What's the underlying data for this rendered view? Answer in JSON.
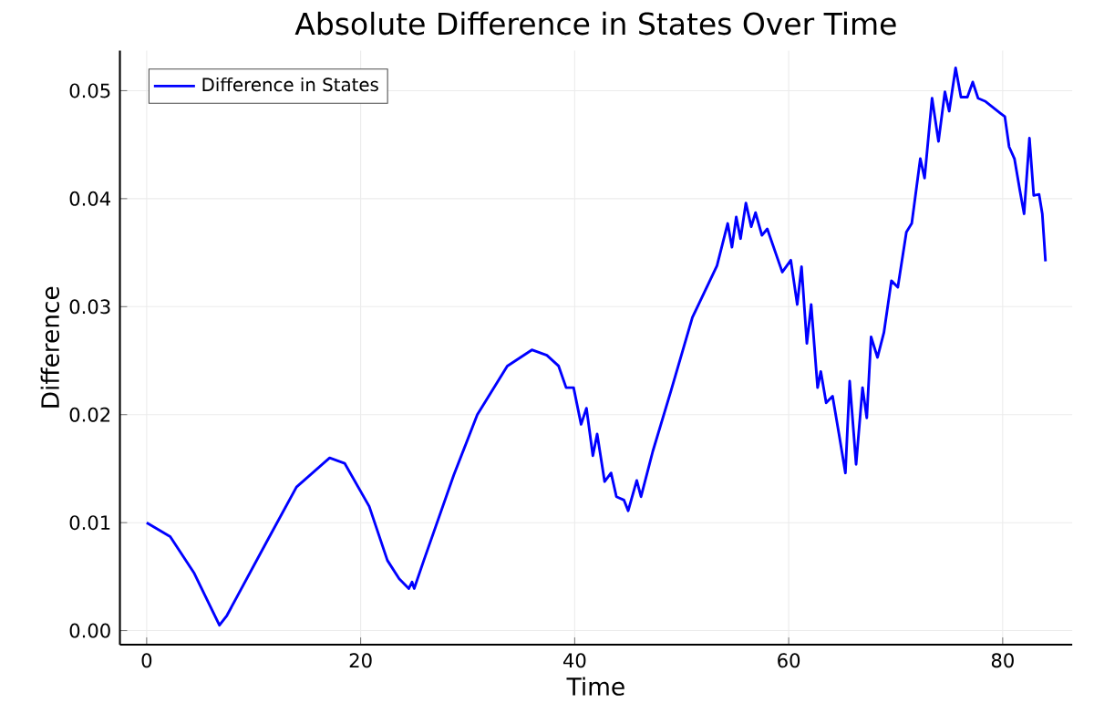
{
  "chart_data": {
    "type": "line",
    "title": "Absolute Difference in States Over Time",
    "xlabel": "Time",
    "ylabel": "Difference",
    "xlim": [
      -2.5,
      86.5
    ],
    "ylim": [
      -0.0013,
      0.0537
    ],
    "xticks": [
      0,
      20,
      40,
      60,
      80
    ],
    "yticks": [
      {
        "value": 0,
        "label": "0.00"
      },
      {
        "value": 0.01,
        "label": "0.01"
      },
      {
        "value": 0.02,
        "label": "0.02"
      },
      {
        "value": 0.03,
        "label": "0.03"
      },
      {
        "value": 0.04,
        "label": "0.04"
      },
      {
        "value": 0.05,
        "label": "0.05"
      }
    ],
    "grid": true,
    "legend": "top left",
    "line_style": "solid",
    "marker": "none",
    "x": [
      0,
      2.2,
      4.45,
      6.8,
      7.5,
      11.2,
      14.0,
      17.1,
      18.5,
      20.8,
      22.5,
      23.6,
      24.5,
      24.8,
      25.0,
      25.9,
      28.7,
      30.9,
      33.7,
      36.0,
      37.4,
      38.5,
      39.2,
      39.9,
      40.6,
      41.1,
      41.7,
      42.1,
      42.8,
      43.4,
      43.9,
      44.6,
      45.0,
      45.8,
      46.2,
      47.3,
      49.0,
      51.0,
      53.3,
      54.3,
      54.7,
      55.1,
      55.5,
      56.0,
      56.5,
      56.9,
      57.5,
      58.0,
      59.4,
      60.2,
      60.8,
      61.2,
      61.7,
      62.1,
      62.7,
      63.0,
      63.5,
      64.1,
      64.7,
      65.3,
      65.7,
      66.3,
      66.9,
      67.3,
      67.7,
      68.3,
      68.9,
      69.6,
      70.2,
      71.0,
      71.5,
      72.3,
      72.7,
      73.4,
      74.0,
      74.6,
      75.0,
      75.6,
      76.1,
      76.7,
      77.2,
      77.7,
      78.4,
      79.8,
      80.2,
      80.6,
      81.1,
      81.6,
      82.0,
      82.5,
      82.9,
      83.4,
      83.7,
      84.0
    ],
    "series": [
      {
        "name": "Difference in States",
        "color": "#0000ff",
        "values": [
          0.01,
          0.0087,
          0.0053,
          0.0005,
          0.0014,
          0.0082,
          0.0133,
          0.016,
          0.0155,
          0.0115,
          0.0065,
          0.0048,
          0.0039,
          0.0045,
          0.0039,
          0.0065,
          0.0144,
          0.02,
          0.0245,
          0.026,
          0.0255,
          0.0245,
          0.0225,
          0.0225,
          0.0191,
          0.0206,
          0.0162,
          0.0182,
          0.0138,
          0.0146,
          0.0124,
          0.0121,
          0.0111,
          0.0139,
          0.0124,
          0.0166,
          0.0222,
          0.029,
          0.0338,
          0.0377,
          0.0355,
          0.0383,
          0.0363,
          0.0396,
          0.0374,
          0.0387,
          0.0366,
          0.0372,
          0.0332,
          0.0343,
          0.0302,
          0.0337,
          0.0266,
          0.0302,
          0.0225,
          0.024,
          0.0211,
          0.0217,
          0.0182,
          0.0146,
          0.0231,
          0.0154,
          0.0225,
          0.0197,
          0.0272,
          0.0253,
          0.0276,
          0.0324,
          0.0318,
          0.0369,
          0.0377,
          0.0437,
          0.0419,
          0.0493,
          0.0453,
          0.0499,
          0.0481,
          0.0521,
          0.0494,
          0.0494,
          0.0508,
          0.0493,
          0.049,
          0.0479,
          0.0476,
          0.0448,
          0.0437,
          0.0408,
          0.0386,
          0.0456,
          0.0403,
          0.0404,
          0.0386,
          0.0342
        ]
      }
    ]
  }
}
